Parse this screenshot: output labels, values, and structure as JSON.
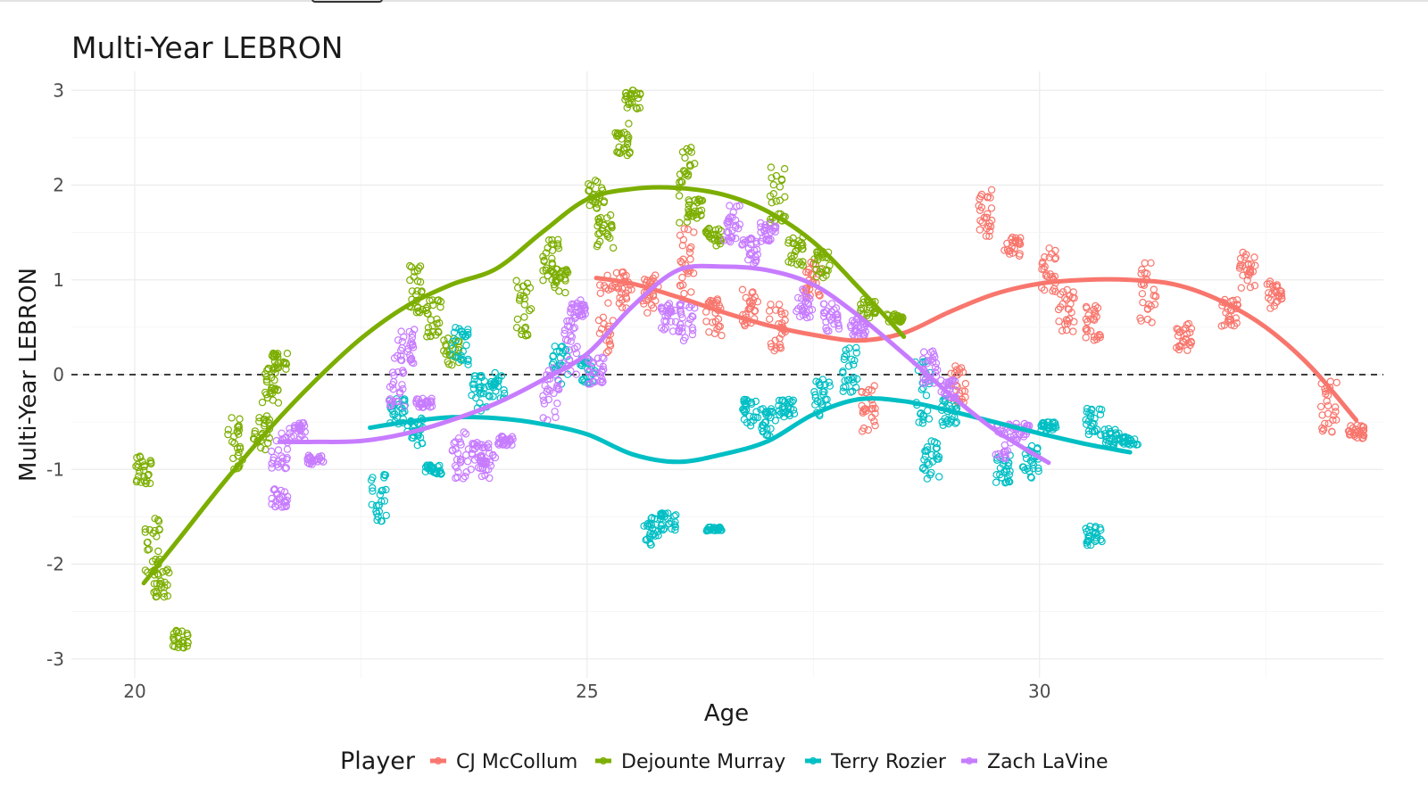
{
  "chart_data": {
    "type": "scatter",
    "title": "Multi-Year LEBRON",
    "xlabel": "Age",
    "ylabel": "Multi-Year LEBRON",
    "xlim": [
      19.3,
      33.8
    ],
    "ylim": [
      -3.2,
      3.2
    ],
    "x_ticks": [
      20,
      25,
      30
    ],
    "y_ticks": [
      -3,
      -2,
      -1,
      0,
      1,
      2,
      3
    ],
    "x_tick_labels": [
      "20",
      "25",
      "30"
    ],
    "y_tick_labels": [
      "-3",
      "-2",
      "-1",
      "0",
      "1",
      "2",
      "3"
    ],
    "reference_line": {
      "y": 0,
      "style": "dashed",
      "color": "#000000"
    },
    "grid": true,
    "legend": {
      "title": "Player",
      "placement": "bottom"
    },
    "series": [
      {
        "name": "CJ McCollum",
        "color": "#F8766D",
        "clusters": [
          [
            25.2,
            0.6,
            0.45
          ],
          [
            25.4,
            0.9,
            0.2
          ],
          [
            25.7,
            0.85,
            0.2
          ],
          [
            26.1,
            1.2,
            0.35
          ],
          [
            26.4,
            0.6,
            0.2
          ],
          [
            26.8,
            0.7,
            0.2
          ],
          [
            27.1,
            0.5,
            0.25
          ],
          [
            27.5,
            1.0,
            0.2
          ],
          [
            28.1,
            -0.35,
            0.25
          ],
          [
            29.1,
            -0.1,
            0.2
          ],
          [
            29.4,
            1.7,
            0.25
          ],
          [
            29.7,
            1.35,
            0.1
          ],
          [
            30.1,
            1.1,
            0.25
          ],
          [
            30.3,
            0.7,
            0.25
          ],
          [
            30.6,
            0.55,
            0.2
          ],
          [
            31.2,
            0.9,
            0.35
          ],
          [
            31.6,
            0.4,
            0.15
          ],
          [
            32.1,
            0.65,
            0.15
          ],
          [
            32.3,
            1.1,
            0.2
          ],
          [
            32.6,
            0.85,
            0.15
          ],
          [
            33.2,
            -0.35,
            0.3
          ],
          [
            33.5,
            -0.6,
            0.08
          ]
        ],
        "smooth": [
          [
            25.1,
            1.02
          ],
          [
            25.5,
            0.96
          ],
          [
            26.0,
            0.82
          ],
          [
            26.5,
            0.66
          ],
          [
            27.0,
            0.52
          ],
          [
            27.5,
            0.42
          ],
          [
            28.0,
            0.36
          ],
          [
            28.5,
            0.44
          ],
          [
            29.0,
            0.66
          ],
          [
            29.5,
            0.85
          ],
          [
            30.0,
            0.96
          ],
          [
            30.5,
            1.0
          ],
          [
            31.0,
            1.0
          ],
          [
            31.5,
            0.95
          ],
          [
            32.0,
            0.78
          ],
          [
            32.5,
            0.5
          ],
          [
            33.0,
            0.08
          ],
          [
            33.5,
            -0.48
          ]
        ]
      },
      {
        "name": "Dejounte Murray",
        "color": "#7CAE00",
        "clusters": [
          [
            20.1,
            -1.0,
            0.15
          ],
          [
            20.2,
            -1.8,
            0.3
          ],
          [
            20.3,
            -2.2,
            0.15
          ],
          [
            20.5,
            -2.8,
            0.1
          ],
          [
            21.1,
            -0.7,
            0.3
          ],
          [
            21.4,
            -0.6,
            0.2
          ],
          [
            21.5,
            -0.1,
            0.2
          ],
          [
            21.6,
            0.15,
            0.1
          ],
          [
            23.1,
            0.9,
            0.25
          ],
          [
            23.3,
            0.6,
            0.2
          ],
          [
            23.5,
            0.25,
            0.15
          ],
          [
            24.3,
            0.7,
            0.3
          ],
          [
            24.6,
            1.2,
            0.25
          ],
          [
            24.7,
            1.0,
            0.15
          ],
          [
            25.1,
            1.9,
            0.15
          ],
          [
            25.2,
            1.5,
            0.2
          ],
          [
            25.4,
            2.5,
            0.2
          ],
          [
            25.5,
            2.9,
            0.1
          ],
          [
            26.1,
            2.0,
            0.4
          ],
          [
            26.2,
            1.75,
            0.1
          ],
          [
            26.4,
            1.45,
            0.1
          ],
          [
            27.1,
            1.9,
            0.3
          ],
          [
            27.3,
            1.3,
            0.15
          ],
          [
            27.6,
            1.15,
            0.15
          ],
          [
            28.1,
            0.7,
            0.1
          ],
          [
            28.4,
            0.6,
            0.05
          ]
        ],
        "smooth": [
          [
            20.1,
            -2.2
          ],
          [
            20.5,
            -1.72
          ],
          [
            21.0,
            -1.12
          ],
          [
            21.5,
            -0.56
          ],
          [
            22.0,
            -0.06
          ],
          [
            22.5,
            0.38
          ],
          [
            23.0,
            0.72
          ],
          [
            23.5,
            0.95
          ],
          [
            24.0,
            1.12
          ],
          [
            24.5,
            1.5
          ],
          [
            25.0,
            1.85
          ],
          [
            25.5,
            1.96
          ],
          [
            26.0,
            1.97
          ],
          [
            26.5,
            1.9
          ],
          [
            27.0,
            1.72
          ],
          [
            27.5,
            1.4
          ],
          [
            28.0,
            0.92
          ],
          [
            28.5,
            0.4
          ]
        ]
      },
      {
        "name": "Terry Rozier",
        "color": "#00BFC4",
        "clusters": [
          [
            22.7,
            -1.3,
            0.3
          ],
          [
            22.9,
            -0.4,
            0.15
          ],
          [
            23.1,
            -0.6,
            0.15
          ],
          [
            23.3,
            -1.0,
            0.05
          ],
          [
            23.6,
            0.3,
            0.2
          ],
          [
            23.8,
            -0.2,
            0.2
          ],
          [
            24.0,
            -0.1,
            0.15
          ],
          [
            24.7,
            0.1,
            0.2
          ],
          [
            25.0,
            0.05,
            0.15
          ],
          [
            25.7,
            -1.65,
            0.15
          ],
          [
            25.9,
            -1.55,
            0.1
          ],
          [
            26.4,
            -1.63,
            0.02
          ],
          [
            26.8,
            -0.4,
            0.15
          ],
          [
            27.0,
            -0.5,
            0.15
          ],
          [
            27.2,
            -0.35,
            0.1
          ],
          [
            27.6,
            -0.25,
            0.2
          ],
          [
            27.9,
            0.05,
            0.25
          ],
          [
            28.7,
            -0.2,
            0.35
          ],
          [
            28.8,
            -0.9,
            0.2
          ],
          [
            29.0,
            -0.4,
            0.15
          ],
          [
            29.6,
            -1.0,
            0.15
          ],
          [
            29.9,
            -0.9,
            0.2
          ],
          [
            30.1,
            -0.55,
            0.05
          ],
          [
            30.6,
            -0.5,
            0.15
          ],
          [
            30.8,
            -0.65,
            0.1
          ],
          [
            31.0,
            -0.7,
            0.05
          ],
          [
            30.6,
            -1.7,
            0.1
          ]
        ],
        "smooth": [
          [
            22.6,
            -0.56
          ],
          [
            23.0,
            -0.5
          ],
          [
            23.5,
            -0.45
          ],
          [
            24.0,
            -0.46
          ],
          [
            24.5,
            -0.52
          ],
          [
            25.0,
            -0.63
          ],
          [
            25.5,
            -0.84
          ],
          [
            26.0,
            -0.92
          ],
          [
            26.5,
            -0.84
          ],
          [
            27.0,
            -0.7
          ],
          [
            27.5,
            -0.42
          ],
          [
            28.0,
            -0.26
          ],
          [
            28.5,
            -0.28
          ],
          [
            29.0,
            -0.38
          ],
          [
            29.5,
            -0.5
          ],
          [
            30.0,
            -0.62
          ],
          [
            30.5,
            -0.73
          ],
          [
            31.0,
            -0.82
          ]
        ]
      },
      {
        "name": "Zach LaVine",
        "color": "#C77CFF",
        "clusters": [
          [
            21.6,
            -0.8,
            0.2
          ],
          [
            21.8,
            -0.6,
            0.1
          ],
          [
            22.0,
            -0.9,
            0.05
          ],
          [
            21.6,
            -1.3,
            0.1
          ],
          [
            22.9,
            -0.1,
            0.3
          ],
          [
            23.0,
            0.3,
            0.2
          ],
          [
            23.2,
            -0.3,
            0.05
          ],
          [
            23.6,
            -0.8,
            0.3
          ],
          [
            23.8,
            -0.85,
            0.15
          ],
          [
            23.9,
            -0.9,
            0.2
          ],
          [
            24.1,
            -0.7,
            0.05
          ],
          [
            24.6,
            -0.2,
            0.3
          ],
          [
            24.8,
            0.3,
            0.3
          ],
          [
            24.9,
            0.7,
            0.1
          ],
          [
            25.1,
            0.05,
            0.15
          ],
          [
            25.9,
            0.6,
            0.15
          ],
          [
            26.1,
            0.55,
            0.2
          ],
          [
            26.6,
            1.6,
            0.2
          ],
          [
            26.8,
            1.3,
            0.15
          ],
          [
            27.0,
            1.5,
            0.1
          ],
          [
            27.4,
            0.75,
            0.15
          ],
          [
            27.7,
            0.6,
            0.15
          ],
          [
            28.0,
            0.5,
            0.1
          ],
          [
            28.8,
            0.05,
            0.2
          ],
          [
            29.0,
            -0.15,
            0.1
          ],
          [
            29.6,
            -0.7,
            0.2
          ],
          [
            29.8,
            -0.6,
            0.1
          ]
        ],
        "smooth": [
          [
            21.6,
            -0.71
          ],
          [
            22.0,
            -0.71
          ],
          [
            22.5,
            -0.7
          ],
          [
            23.0,
            -0.62
          ],
          [
            23.5,
            -0.48
          ],
          [
            24.0,
            -0.3
          ],
          [
            24.5,
            -0.06
          ],
          [
            25.0,
            0.22
          ],
          [
            25.5,
            0.72
          ],
          [
            26.0,
            1.1
          ],
          [
            26.5,
            1.14
          ],
          [
            27.0,
            1.1
          ],
          [
            27.5,
            0.95
          ],
          [
            28.0,
            0.62
          ],
          [
            28.5,
            0.22
          ],
          [
            29.0,
            -0.2
          ],
          [
            29.5,
            -0.58
          ],
          [
            30.1,
            -0.93
          ]
        ]
      }
    ]
  }
}
